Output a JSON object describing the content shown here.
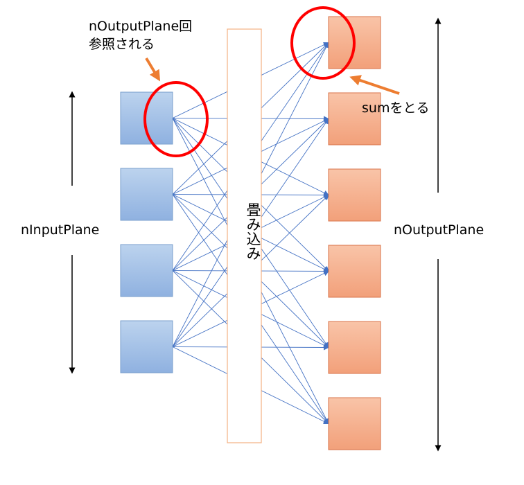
{
  "labels": {
    "n_input_plane": "nInputPlane",
    "n_output_plane": "nOutputPlane",
    "annotation_refs_line1": "nOutputPlane回",
    "annotation_refs_line2": "参照される",
    "annotation_sum": "sumをとる",
    "convolution": "畳み込み"
  },
  "counts": {
    "input_planes": 4,
    "output_planes": 6
  },
  "colors": {
    "input_fill_top": "#bcd3ee",
    "input_fill_bottom": "#8fb1e0",
    "input_stroke": "#7a9fcc",
    "output_fill_top": "#f9c4a8",
    "output_fill_bottom": "#f2a07a",
    "output_stroke": "#d8734a",
    "connection": "#4472c4",
    "conv_bar_stroke": "#f4b183",
    "highlight_circle": "#ff0000",
    "annotation_arrow": "#ed7d31",
    "axis_arrow": "#000000"
  }
}
